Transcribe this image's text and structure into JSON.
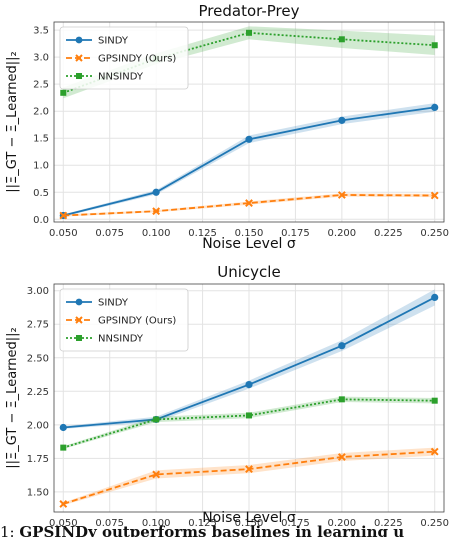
{
  "chart_data": [
    {
      "type": "line",
      "title": "Predator-Prey",
      "xlabel": "Noise Level σ",
      "ylabel": "||Ξ_GT − Ξ_Learned||₂",
      "xlim": [
        0.045,
        0.255
      ],
      "ylim": [
        -0.05,
        3.65
      ],
      "xticks": [
        "0.050",
        "0.075",
        "0.100",
        "0.125",
        "0.150",
        "0.175",
        "0.200",
        "0.225",
        "0.250"
      ],
      "yticks": [
        "0.0",
        "0.5",
        "1.0",
        "1.5",
        "2.0",
        "2.5",
        "3.0",
        "3.5"
      ],
      "grid": true,
      "legend": "top-left",
      "x": [
        0.05,
        0.1,
        0.15,
        0.2,
        0.25
      ],
      "series": [
        {
          "name": "SINDY",
          "color": "#1f77b4",
          "marker": "circle",
          "dash": "solid",
          "values": [
            0.07,
            0.5,
            1.48,
            1.83,
            2.07
          ],
          "band": [
            0.02,
            0.04,
            0.07,
            0.07,
            0.08
          ]
        },
        {
          "name": "GPSINDY (Ours)",
          "color": "#ff7f0e",
          "marker": "x",
          "dash": "dashed",
          "values": [
            0.07,
            0.15,
            0.3,
            0.45,
            0.44
          ],
          "band": [
            0.02,
            0.02,
            0.03,
            0.03,
            0.03
          ]
        },
        {
          "name": "NNSINDY",
          "color": "#2ca02c",
          "marker": "square",
          "dash": "dotted",
          "values": [
            2.34,
            2.97,
            3.45,
            3.33,
            3.22
          ],
          "band": [
            0.1,
            0.1,
            0.12,
            0.16,
            0.18
          ]
        }
      ]
    },
    {
      "type": "line",
      "title": "Unicycle",
      "xlabel": "Noise Level σ",
      "ylabel": "||Ξ_GT − Ξ_Learned||₂",
      "xlim": [
        0.045,
        0.255
      ],
      "ylim": [
        1.35,
        3.05
      ],
      "xticks": [
        "0.050",
        "0.075",
        "0.100",
        "0.125",
        "0.150",
        "0.175",
        "0.200",
        "0.225",
        "0.250"
      ],
      "yticks": [
        "1.50",
        "1.75",
        "2.00",
        "2.25",
        "2.50",
        "2.75",
        "3.00"
      ],
      "grid": true,
      "legend": "top-left",
      "x": [
        0.05,
        0.1,
        0.15,
        0.2,
        0.25
      ],
      "series": [
        {
          "name": "SINDY",
          "color": "#1f77b4",
          "marker": "circle",
          "dash": "solid",
          "values": [
            1.98,
            2.04,
            2.3,
            2.59,
            2.95
          ],
          "band": [
            0.01,
            0.02,
            0.03,
            0.04,
            0.06
          ]
        },
        {
          "name": "GPSINDY (Ours)",
          "color": "#ff7f0e",
          "marker": "x",
          "dash": "dashed",
          "values": [
            1.41,
            1.63,
            1.67,
            1.76,
            1.8
          ],
          "band": [
            0.01,
            0.03,
            0.03,
            0.03,
            0.03
          ]
        },
        {
          "name": "NNSINDY",
          "color": "#2ca02c",
          "marker": "square",
          "dash": "dotted",
          "values": [
            1.83,
            2.04,
            2.07,
            2.19,
            2.18
          ],
          "band": [
            0.01,
            0.02,
            0.02,
            0.02,
            0.02
          ]
        }
      ]
    }
  ],
  "caption": {
    "prefix": "1: ",
    "bold": "GPSINDy outperforms baselines in learning u"
  }
}
